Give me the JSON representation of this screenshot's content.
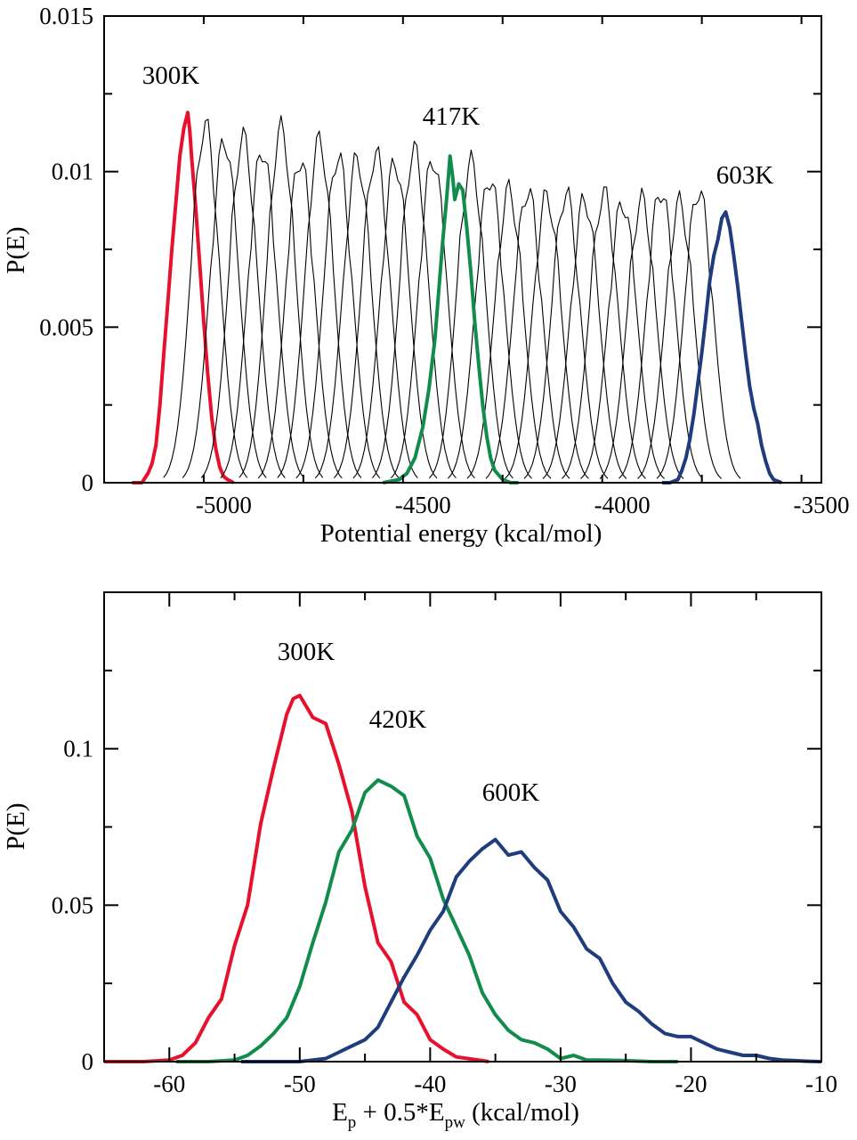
{
  "chart_data": [
    {
      "type": "line",
      "xlabel": "Potential energy (kcal/mol)",
      "ylabel": "P(E)",
      "xlim": [
        -5300,
        -3500
      ],
      "ylim": [
        0,
        0.015
      ],
      "xticks": [
        -5000,
        -4500,
        -4000,
        -3500
      ],
      "xtick_labels": [
        "-5000",
        "-4500",
        "-4000",
        "-3500"
      ],
      "yticks": [
        0,
        0.005,
        0.01,
        0.015
      ],
      "ytick_labels": [
        "0",
        "0.005",
        "0.01",
        "0.015"
      ],
      "grid": false,
      "annotations": [
        {
          "text": "300K",
          "x": -5150,
          "y": 0.0131
        },
        {
          "text": "417K",
          "x": -4418,
          "y": 0.0117
        },
        {
          "text": "603K",
          "x": -3727,
          "y": 0.0099
        }
      ],
      "series": [
        {
          "color": "#e8112d",
          "highlight": true,
          "x": [
            -5230,
            -5205,
            -5190,
            -5180,
            -5170,
            -5160,
            -5150,
            -5140,
            -5130,
            -5120,
            -5110,
            -5100,
            -5090,
            -5085,
            -5080,
            -5070,
            -5060,
            -5050,
            -5040,
            -5030,
            -5020,
            -5010,
            -5000,
            -4990,
            -4975
          ],
          "y": [
            0,
            0,
            0.0003,
            0.0006,
            0.0012,
            0.0025,
            0.0042,
            0.0058,
            0.0075,
            0.009,
            0.0105,
            0.0114,
            0.0119,
            0.0113,
            0.0104,
            0.0088,
            0.007,
            0.0052,
            0.0035,
            0.0021,
            0.0011,
            0.0005,
            0.0002,
            0.0001,
            0
          ]
        },
        {
          "color": "#000000",
          "highlight": false,
          "peak": -5046,
          "height": 0.0115
        },
        {
          "color": "#000000",
          "highlight": false,
          "peak": -4998,
          "height": 0.011
        },
        {
          "color": "#000000",
          "highlight": false,
          "peak": -4951,
          "height": 0.0111
        },
        {
          "color": "#000000",
          "highlight": false,
          "peak": -4903,
          "height": 0.0107
        },
        {
          "color": "#000000",
          "highlight": false,
          "peak": -4856,
          "height": 0.0114
        },
        {
          "color": "#000000",
          "highlight": false,
          "peak": -4808,
          "height": 0.0104
        },
        {
          "color": "#000000",
          "highlight": false,
          "peak": -4760,
          "height": 0.011
        },
        {
          "color": "#000000",
          "highlight": false,
          "peak": -4713,
          "height": 0.0105
        },
        {
          "color": "#000000",
          "highlight": false,
          "peak": -4665,
          "height": 0.0104
        },
        {
          "color": "#000000",
          "highlight": false,
          "peak": -4618,
          "height": 0.0106
        },
        {
          "color": "#000000",
          "highlight": false,
          "peak": -4570,
          "height": 0.0103
        },
        {
          "color": "#000000",
          "highlight": false,
          "peak": -4522,
          "height": 0.0107
        },
        {
          "color": "#000000",
          "highlight": false,
          "peak": -4475,
          "height": 0.0104
        },
        {
          "color": "#000000",
          "highlight": false,
          "peak": -4379,
          "height": 0.0103
        },
        {
          "color": "#000000",
          "highlight": false,
          "peak": -4332,
          "height": 0.0098
        },
        {
          "color": "#000000",
          "highlight": false,
          "peak": -4284,
          "height": 0.0094
        },
        {
          "color": "#000000",
          "highlight": false,
          "peak": -4237,
          "height": 0.0094
        },
        {
          "color": "#000000",
          "highlight": false,
          "peak": -4189,
          "height": 0.0092
        },
        {
          "color": "#000000",
          "highlight": false,
          "peak": -4141,
          "height": 0.0093
        },
        {
          "color": "#000000",
          "highlight": false,
          "peak": -4094,
          "height": 0.0091
        },
        {
          "color": "#000000",
          "highlight": false,
          "peak": -4046,
          "height": 0.0093
        },
        {
          "color": "#000000",
          "highlight": false,
          "peak": -3999,
          "height": 0.009
        },
        {
          "color": "#000000",
          "highlight": false,
          "peak": -3951,
          "height": 0.0091
        },
        {
          "color": "#000000",
          "highlight": false,
          "peak": -3903,
          "height": 0.0094
        },
        {
          "color": "#000000",
          "highlight": false,
          "peak": -3856,
          "height": 0.009
        },
        {
          "color": "#000000",
          "highlight": false,
          "peak": -3808,
          "height": 0.0094
        },
        {
          "color": "#128c4d",
          "highlight": true,
          "x": [
            -4600,
            -4560,
            -4540,
            -4520,
            -4500,
            -4485,
            -4470,
            -4460,
            -4450,
            -4440,
            -4432,
            -4425,
            -4420,
            -4410,
            -4400,
            -4390,
            -4380,
            -4370,
            -4360,
            -4350,
            -4340,
            -4330,
            -4320,
            -4300,
            -4280,
            -4260
          ],
          "y": [
            0,
            0.0001,
            0.0003,
            0.0008,
            0.0018,
            0.003,
            0.0046,
            0.0062,
            0.0078,
            0.0092,
            0.0105,
            0.0098,
            0.0091,
            0.0096,
            0.0094,
            0.0082,
            0.0068,
            0.0052,
            0.0038,
            0.0025,
            0.0015,
            0.0008,
            0.0004,
            0.0001,
            0,
            0
          ]
        },
        {
          "color": "#1f3c7d",
          "highlight": true,
          "x": [
            -3900,
            -3880,
            -3860,
            -3850,
            -3840,
            -3830,
            -3820,
            -3810,
            -3800,
            -3790,
            -3780,
            -3770,
            -3760,
            -3750,
            -3740,
            -3730,
            -3720,
            -3710,
            -3700,
            -3690,
            -3680,
            -3670,
            -3660,
            -3650,
            -3640,
            -3630,
            -3620,
            -3600
          ],
          "y": [
            0,
            0,
            0.0001,
            0.0004,
            0.0008,
            0.0014,
            0.0022,
            0.0032,
            0.0042,
            0.0053,
            0.0065,
            0.0073,
            0.0078,
            0.0085,
            0.0087,
            0.0082,
            0.0073,
            0.0063,
            0.0052,
            0.0041,
            0.0031,
            0.0024,
            0.0019,
            0.0012,
            0.0007,
            0.0003,
            0.0001,
            0
          ]
        }
      ]
    },
    {
      "type": "line",
      "xlabel_main": "E",
      "xlabel_sub1": "p",
      "xlabel_mid": " + 0.5*E",
      "xlabel_sub2": "pw",
      "xlabel_tail": " (kcal/mol)",
      "ylabel": "P(E)",
      "xlim": [
        -65,
        -10
      ],
      "ylim": [
        0,
        0.15
      ],
      "xticks": [
        -60,
        -50,
        -40,
        -30,
        -20,
        -10
      ],
      "xtick_labels": [
        "-60",
        "-50",
        "-40",
        "-30",
        "-20",
        "-10"
      ],
      "yticks": [
        0,
        0.05,
        0.1
      ],
      "ytick_labels": [
        "0",
        "0.05",
        "0.1"
      ],
      "grid": false,
      "annotations": [
        {
          "text": "300K",
          "x": -50,
          "y": 0.128
        },
        {
          "text": "420K",
          "x": -42,
          "y": 0.107
        },
        {
          "text": "600K",
          "x": -33,
          "y": 0.082
        }
      ],
      "series": [
        {
          "color": "#e8112d",
          "x": [
            -65,
            -62,
            -60,
            -59,
            -58,
            -57,
            -56,
            -55,
            -54,
            -53,
            -52,
            -51,
            -50.5,
            -50,
            -49,
            -48,
            -47,
            -46,
            -45,
            -44,
            -43,
            -42,
            -41,
            -40,
            -39,
            -38,
            -36,
            -35.5
          ],
          "y": [
            0,
            0,
            0.0005,
            0.002,
            0.006,
            0.014,
            0.02,
            0.037,
            0.05,
            0.076,
            0.094,
            0.111,
            0.116,
            0.117,
            0.11,
            0.108,
            0.095,
            0.08,
            0.056,
            0.038,
            0.032,
            0.019,
            0.015,
            0.007,
            0.004,
            0.0015,
            0.0003,
            0
          ]
        },
        {
          "color": "#128c4d",
          "x": [
            -59.5,
            -57,
            -55,
            -54,
            -53,
            -52,
            -51,
            -50,
            -49,
            -48,
            -47,
            -46,
            -45,
            -44,
            -43,
            -42,
            -41,
            -40,
            -39,
            -38,
            -37,
            -36,
            -35,
            -34,
            -33,
            -32,
            -31,
            -30,
            -29,
            -28,
            -27,
            -25,
            -23,
            -21
          ],
          "y": [
            0,
            0,
            0.0005,
            0.002,
            0.005,
            0.009,
            0.014,
            0.024,
            0.038,
            0.051,
            0.067,
            0.074,
            0.086,
            0.09,
            0.088,
            0.085,
            0.072,
            0.065,
            0.052,
            0.043,
            0.034,
            0.022,
            0.015,
            0.01,
            0.007,
            0.006,
            0.004,
            0.001,
            0.002,
            0.0005,
            0.0005,
            0.0003,
            0,
            0
          ]
        },
        {
          "color": "#1f3c7d",
          "x": [
            -54.5,
            -50,
            -49,
            -48,
            -47,
            -46,
            -45,
            -44,
            -43,
            -42,
            -41,
            -40,
            -39,
            -38,
            -37,
            -36,
            -35,
            -34,
            -33,
            -32,
            -31,
            -30,
            -29,
            -28,
            -27,
            -26,
            -25,
            -24,
            -23,
            -22,
            -21,
            -20,
            -19,
            -18,
            -17,
            -16,
            -15,
            -14,
            -13,
            -12,
            -11,
            -10
          ],
          "y": [
            0,
            0,
            0.0005,
            0.001,
            0.003,
            0.005,
            0.007,
            0.011,
            0.019,
            0.027,
            0.034,
            0.042,
            0.048,
            0.059,
            0.064,
            0.068,
            0.071,
            0.066,
            0.067,
            0.062,
            0.058,
            0.048,
            0.043,
            0.036,
            0.033,
            0.025,
            0.019,
            0.016,
            0.012,
            0.009,
            0.008,
            0.008,
            0.006,
            0.004,
            0.003,
            0.002,
            0.002,
            0.001,
            0.0005,
            0.0003,
            0.0001,
            0
          ]
        }
      ]
    }
  ]
}
